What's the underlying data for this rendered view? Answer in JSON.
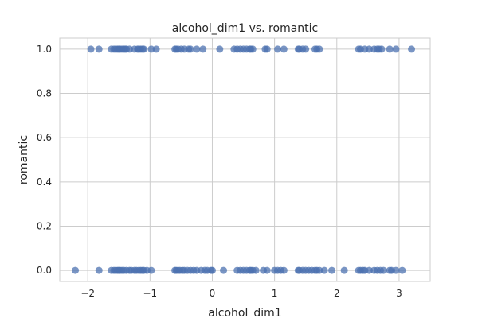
{
  "chart_data": {
    "type": "scatter",
    "title": "alcohol_dim1 vs. romantic",
    "xlabel": "alcohol_dim1",
    "ylabel": "romantic",
    "xlim": [
      -2.45,
      3.5
    ],
    "ylim": [
      -0.05,
      1.05
    ],
    "xticks": [
      -2,
      -1,
      0,
      1,
      2,
      3
    ],
    "xtick_labels": [
      "−2",
      "−1",
      "0",
      "1",
      "2",
      "3"
    ],
    "yticks": [
      0.0,
      0.2,
      0.4,
      0.6,
      0.8,
      1.0
    ],
    "ytick_labels": [
      "0.0",
      "0.2",
      "0.4",
      "0.6",
      "0.8",
      "1.0"
    ],
    "grid": true,
    "legend": "none",
    "marker_color": "#4c72b0",
    "series": [
      {
        "x": [
          -1.95,
          -1.82,
          -1.62,
          -1.58,
          -1.55,
          -1.52,
          -1.5,
          -1.48,
          -1.45,
          -1.42,
          -1.4,
          -1.38,
          -1.33,
          -1.25,
          -1.2,
          -1.18,
          -1.15,
          -1.12,
          -1.1,
          -0.98,
          -0.9,
          -0.6,
          -0.58,
          -0.55,
          -0.5,
          -0.45,
          -0.38,
          -0.35,
          -0.25,
          -0.15,
          0.12,
          0.35,
          0.4,
          0.45,
          0.5,
          0.55,
          0.6,
          0.62,
          0.65,
          0.85,
          0.88,
          1.05,
          1.15,
          1.38,
          1.4,
          1.45,
          1.5,
          1.65,
          1.68,
          1.72,
          2.35,
          2.38,
          2.45,
          2.52,
          2.6,
          2.65,
          2.68,
          2.72,
          2.85,
          2.95,
          3.2
        ],
        "y": [
          1,
          1,
          1,
          1,
          1,
          1,
          1,
          1,
          1,
          1,
          1,
          1,
          1,
          1,
          1,
          1,
          1,
          1,
          1,
          1,
          1,
          1,
          1,
          1,
          1,
          1,
          1,
          1,
          1,
          1,
          1,
          1,
          1,
          1,
          1,
          1,
          1,
          1,
          1,
          1,
          1,
          1,
          1,
          1,
          1,
          1,
          1,
          1,
          1,
          1,
          1,
          1,
          1,
          1,
          1,
          1,
          1,
          1,
          1,
          1,
          1
        ]
      },
      {
        "x": [
          -2.2,
          -1.82,
          -1.62,
          -1.58,
          -1.55,
          -1.52,
          -1.5,
          -1.48,
          -1.45,
          -1.42,
          -1.38,
          -1.33,
          -1.3,
          -1.25,
          -1.22,
          -1.18,
          -1.15,
          -1.12,
          -1.1,
          -1.05,
          -0.98,
          -0.6,
          -0.58,
          -0.55,
          -0.52,
          -0.48,
          -0.45,
          -0.4,
          -0.35,
          -0.3,
          -0.25,
          -0.18,
          -0.12,
          -0.08,
          -0.02,
          0.0,
          0.18,
          0.4,
          0.45,
          0.5,
          0.55,
          0.6,
          0.62,
          0.65,
          0.7,
          0.82,
          0.88,
          1.0,
          1.05,
          1.1,
          1.15,
          1.38,
          1.4,
          1.45,
          1.5,
          1.55,
          1.6,
          1.65,
          1.68,
          1.72,
          1.8,
          1.92,
          2.12,
          2.35,
          2.38,
          2.42,
          2.45,
          2.52,
          2.6,
          2.65,
          2.7,
          2.75,
          2.85,
          2.88,
          2.95,
          3.05
        ],
        "y": [
          0,
          0,
          0,
          0,
          0,
          0,
          0,
          0,
          0,
          0,
          0,
          0,
          0,
          0,
          0,
          0,
          0,
          0,
          0,
          0,
          0,
          0,
          0,
          0,
          0,
          0,
          0,
          0,
          0,
          0,
          0,
          0,
          0,
          0,
          0,
          0,
          0,
          0,
          0,
          0,
          0,
          0,
          0,
          0,
          0,
          0,
          0,
          0,
          0,
          0,
          0,
          0,
          0,
          0,
          0,
          0,
          0,
          0,
          0,
          0,
          0,
          0,
          0,
          0,
          0,
          0,
          0,
          0,
          0,
          0,
          0,
          0,
          0,
          0,
          0,
          0
        ]
      }
    ]
  }
}
